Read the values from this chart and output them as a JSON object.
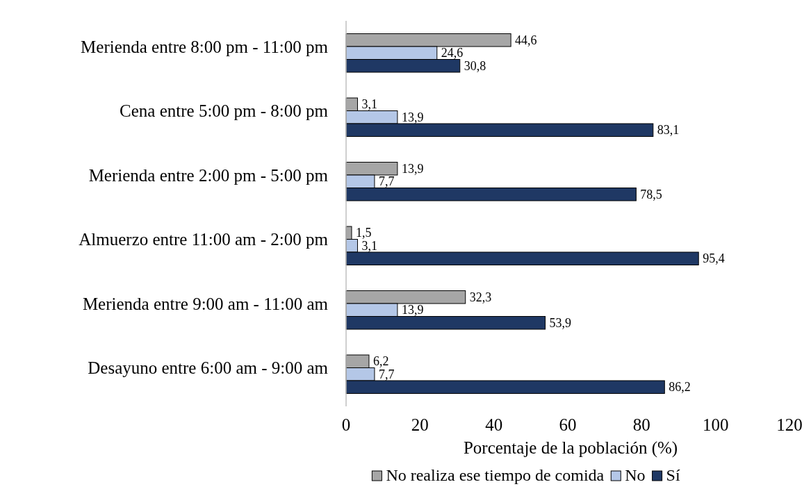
{
  "chart_data": {
    "type": "bar",
    "orientation": "horizontal",
    "xlabel": "Porcentaje de la población (%)",
    "categories": [
      "Merienda entre 8:00 pm - 11:00 pm",
      "Cena entre 5:00 pm - 8:00 pm",
      "Merienda entre 2:00 pm - 5:00 pm",
      "Almuerzo entre 11:00 am - 2:00 pm",
      "Merienda entre 9:00 am - 11:00 am",
      "Desayuno entre 6:00 am - 9:00 am"
    ],
    "series": [
      {
        "name": "No realiza ese tiempo de comida",
        "color": "#a6a6a6",
        "values": [
          44.6,
          3.1,
          13.9,
          1.5,
          32.3,
          6.2
        ],
        "value_labels": [
          "44,6",
          "3,1",
          "13,9",
          "1,5",
          "32,3",
          "6,2"
        ]
      },
      {
        "name": "No",
        "color": "#b4c7e7",
        "values": [
          24.6,
          13.9,
          7.7,
          3.1,
          13.9,
          7.7
        ],
        "value_labels": [
          "24,6",
          "13,9",
          "7,7",
          "3,1",
          "13,9",
          "7,7"
        ]
      },
      {
        "name": "Sí",
        "color": "#1f3864",
        "values": [
          30.8,
          83.1,
          78.5,
          95.4,
          53.9,
          86.2
        ],
        "value_labels": [
          "30,8",
          "83,1",
          "78,5",
          "95,4",
          "53,9",
          "86,2"
        ]
      }
    ],
    "xlim": [
      0,
      120
    ],
    "xticks": [
      0,
      20,
      40,
      60,
      80,
      100,
      120
    ],
    "grid": false,
    "legend": "bottom"
  }
}
